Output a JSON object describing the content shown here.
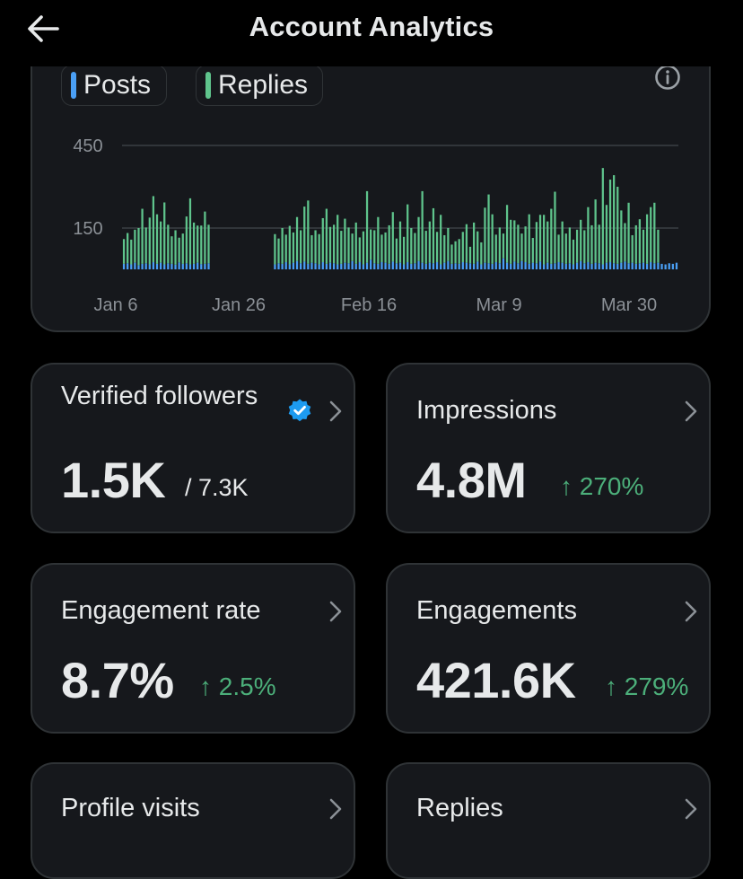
{
  "header": {
    "title": "Account Analytics"
  },
  "chart_legend": {
    "posts_label": "Posts",
    "replies_label": "Replies",
    "posts_color": "#4a9ff5",
    "replies_color": "#5fc48c"
  },
  "chart_data": {
    "type": "bar",
    "stacked": true,
    "x_tick_labels": [
      "Jan 6",
      "Jan 26",
      "Feb 16",
      "Mar 9",
      "Mar 30"
    ],
    "y_tick_labels": [
      "450",
      "150"
    ],
    "grid": true,
    "ylim": [
      0,
      450
    ],
    "series": [
      {
        "name": "Posts",
        "values": [
          20,
          22,
          18,
          24,
          15,
          20,
          22,
          18,
          26,
          20,
          24,
          18,
          22,
          20,
          17,
          25,
          20,
          22,
          18,
          20,
          24,
          19,
          20,
          22,
          0,
          0,
          0,
          0,
          0,
          0,
          0,
          0,
          0,
          0,
          0,
          0,
          0,
          0,
          0,
          0,
          0,
          18,
          22,
          20,
          26,
          18,
          24,
          30,
          22,
          28,
          20,
          24,
          22,
          18,
          26,
          20,
          24,
          22,
          18,
          20,
          24,
          22,
          30,
          20,
          26,
          18,
          24,
          35,
          22,
          20,
          26,
          24,
          20,
          28,
          22,
          24,
          18,
          26,
          20,
          22,
          30,
          24,
          20,
          24,
          22,
          26,
          18,
          24,
          30,
          20,
          22,
          20,
          26,
          24,
          22,
          20,
          28,
          18,
          24,
          22,
          20,
          26,
          22,
          40,
          24,
          20,
          28,
          22,
          30,
          26,
          20,
          24,
          22,
          28,
          18,
          24,
          20,
          22,
          26,
          24,
          20,
          22,
          18,
          24,
          30,
          22,
          26,
          20,
          24,
          22,
          18,
          24,
          26,
          22,
          20,
          24,
          28,
          22,
          24,
          20,
          22,
          24,
          20,
          26,
          22,
          24,
          20,
          18,
          22,
          20,
          24
        ]
      },
      {
        "name": "Replies",
        "values": [
          90,
          110,
          90,
          120,
          135,
          200,
          130,
          170,
          240,
          180,
          150,
          225,
          140,
          100,
          125,
          90,
          110,
          170,
          240,
          150,
          135,
          140,
          190,
          140,
          0,
          0,
          0,
          0,
          0,
          0,
          0,
          0,
          0,
          0,
          0,
          0,
          0,
          0,
          0,
          0,
          0,
          110,
          90,
          130,
          100,
          140,
          110,
          160,
          120,
          200,
          230,
          100,
          120,
          110,
          160,
          200,
          130,
          140,
          180,
          120,
          160,
          130,
          100,
          150,
          90,
          120,
          260,
          110,
          120,
          170,
          100,
          110,
          140,
          180,
          90,
          150,
          100,
          210,
          130,
          110,
          160,
          260,
          120,
          150,
          200,
          110,
          180,
          100,
          120,
          70,
          80,
          90,
          110,
          140,
          60,
          150,
          110,
          80,
          200,
          250,
          180,
          100,
          130,
          90,
          210,
          160,
          150,
          140,
          100,
          130,
          180,
          90,
          150,
          170,
          180,
          150,
          200,
          260,
          100,
          150,
          110,
          130,
          90,
          120,
          150,
          120,
          200,
          140,
          230,
          140,
          350,
          210,
          300,
          320,
          280,
          190,
          140,
          220,
          100,
          140,
          160,
          120,
          180,
          200,
          220,
          120
        ]
      }
    ]
  },
  "metrics": [
    {
      "label": "Verified followers",
      "value": "1.5K",
      "sub": "/ 7.3K"
    },
    {
      "label": "Impressions",
      "value": "4.8M",
      "change": "↑ 270%"
    },
    {
      "label": "Engagement rate",
      "value": "8.7%",
      "change": "↑ 2.5%"
    },
    {
      "label": "Engagements",
      "value": "421.6K",
      "change": "↑ 279%"
    },
    {
      "label": "Profile visits"
    },
    {
      "label": "Replies"
    }
  ],
  "colors": {
    "positive_change": "#4caf7a",
    "verified_badge": "#1d9bf0",
    "card_bg": "#16181c",
    "card_border": "#2f3336"
  }
}
